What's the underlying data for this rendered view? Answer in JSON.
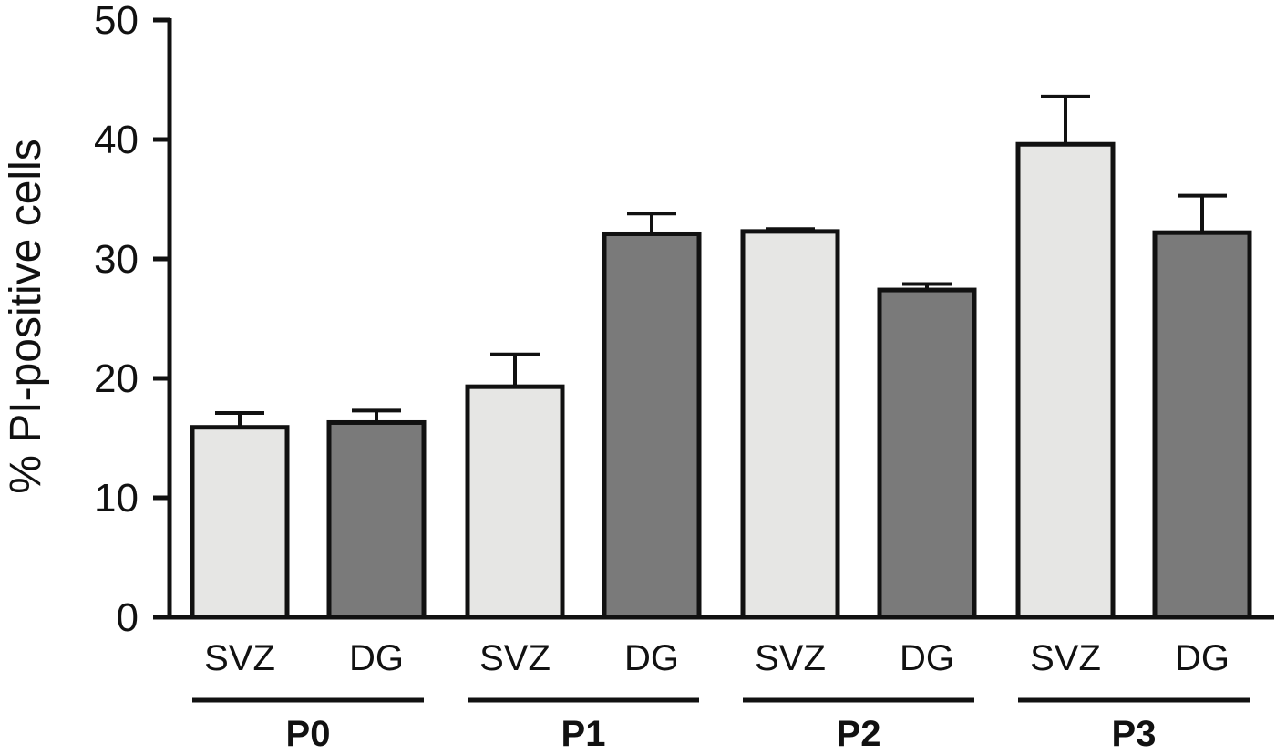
{
  "chart_data": {
    "type": "bar",
    "title": "",
    "xlabel": "",
    "ylabel": "% PI-positive cells",
    "ylim": [
      0,
      50
    ],
    "yticks": [
      0,
      10,
      20,
      30,
      40,
      50
    ],
    "grid": false,
    "legend": "none",
    "groups": [
      {
        "label": "P0",
        "bars": [
          {
            "category": "SVZ",
            "value": 15.9,
            "error": 1.2,
            "color": "#e6e6e4"
          },
          {
            "category": "DG",
            "value": 16.3,
            "error": 1.0,
            "color": "#7a7a7a"
          }
        ]
      },
      {
        "label": "P1",
        "bars": [
          {
            "category": "SVZ",
            "value": 19.3,
            "error": 2.7,
            "color": "#e6e6e4"
          },
          {
            "category": "DG",
            "value": 32.1,
            "error": 1.7,
            "color": "#7a7a7a"
          }
        ]
      },
      {
        "label": "P2",
        "bars": [
          {
            "category": "SVZ",
            "value": 32.3,
            "error": 0.2,
            "color": "#e6e6e4"
          },
          {
            "category": "DG",
            "value": 27.4,
            "error": 0.5,
            "color": "#7a7a7a"
          }
        ]
      },
      {
        "label": "P3",
        "bars": [
          {
            "category": "SVZ",
            "value": 39.6,
            "error": 4.0,
            "color": "#e6e6e4"
          },
          {
            "category": "DG",
            "value": 32.2,
            "error": 3.1,
            "color": "#7a7a7a"
          }
        ]
      }
    ]
  }
}
